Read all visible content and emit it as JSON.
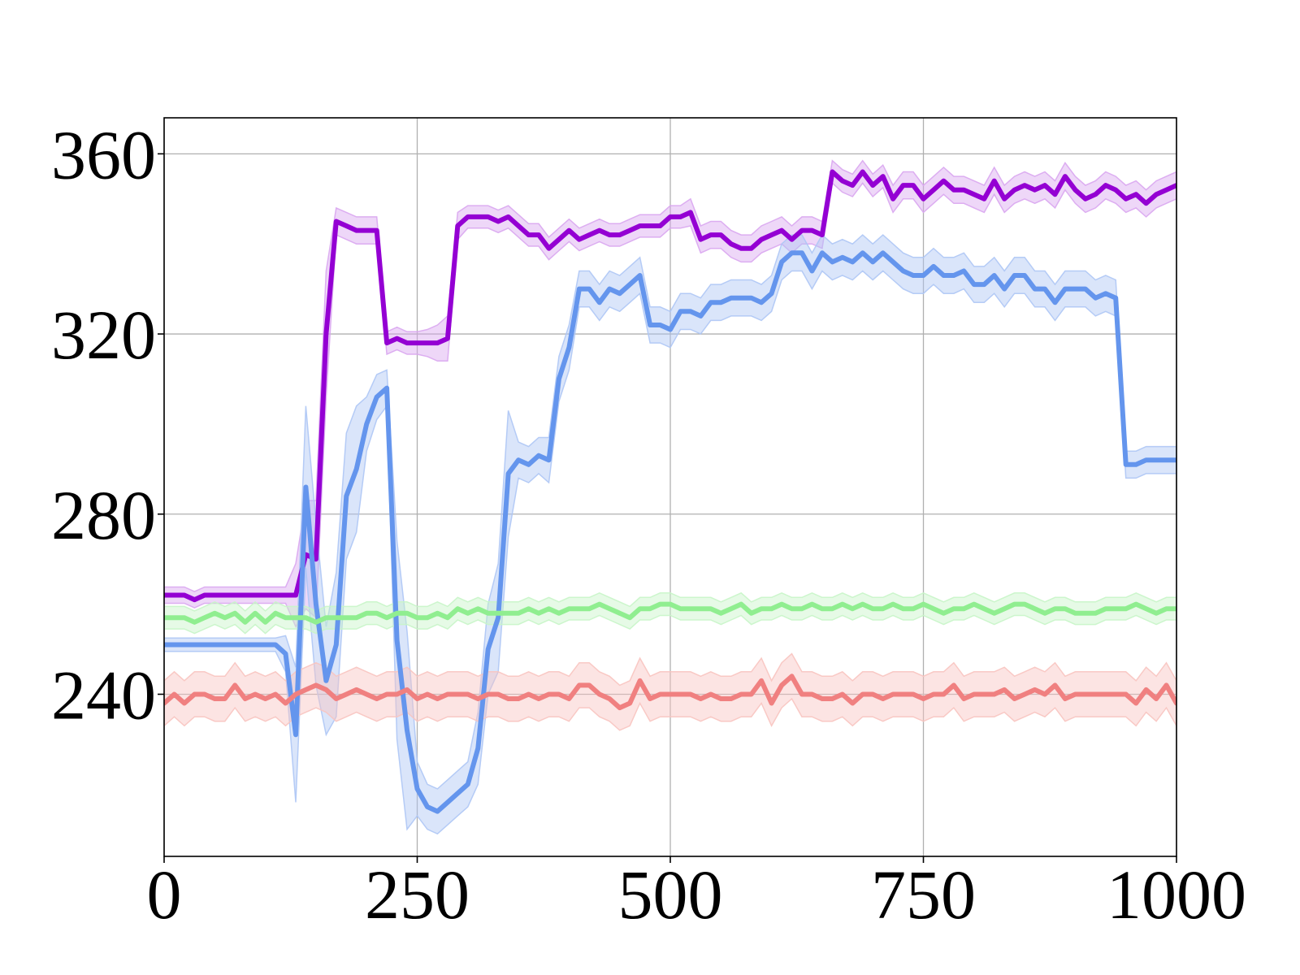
{
  "chart_data": {
    "type": "line",
    "title": "",
    "xlabel": "",
    "ylabel": "",
    "xlim": [
      0,
      1000
    ],
    "ylim": [
      204,
      368
    ],
    "x_ticks": [
      0,
      250,
      500,
      750,
      1000
    ],
    "x_tick_labels": [
      "0",
      "250",
      "500",
      "750",
      "1000"
    ],
    "y_ticks": [
      240,
      280,
      320,
      360
    ],
    "y_tick_labels": [
      "240",
      "280",
      "320",
      "360"
    ],
    "grid": true,
    "legend": "none",
    "x": [
      0,
      10,
      20,
      30,
      40,
      50,
      60,
      70,
      80,
      90,
      100,
      110,
      120,
      130,
      140,
      150,
      160,
      170,
      180,
      190,
      200,
      210,
      220,
      230,
      240,
      250,
      260,
      270,
      280,
      290,
      300,
      310,
      320,
      330,
      340,
      350,
      360,
      370,
      380,
      390,
      400,
      410,
      420,
      430,
      440,
      450,
      460,
      470,
      480,
      490,
      500,
      510,
      520,
      530,
      540,
      550,
      560,
      570,
      580,
      590,
      600,
      610,
      620,
      630,
      640,
      650,
      660,
      670,
      680,
      690,
      700,
      710,
      720,
      730,
      740,
      750,
      760,
      770,
      780,
      790,
      800,
      810,
      820,
      830,
      840,
      850,
      860,
      870,
      880,
      890,
      900,
      910,
      920,
      930,
      940,
      950,
      960,
      970,
      980,
      990,
      1000
    ],
    "series": [
      {
        "color": "#9400d3",
        "band_color": "#d9a6f0",
        "values": [
          262,
          262,
          262,
          261,
          262,
          262,
          262,
          262,
          262,
          262,
          262,
          262,
          262,
          262,
          271,
          270,
          320,
          345,
          344,
          343,
          343,
          343,
          318,
          319,
          318,
          318,
          318,
          318,
          319,
          344,
          346,
          346,
          346,
          345,
          346,
          344,
          342,
          342,
          339,
          341,
          343,
          341,
          342,
          343,
          342,
          342,
          343,
          344,
          344,
          344,
          346,
          346,
          347,
          341,
          342,
          342,
          340,
          339,
          339,
          341,
          342,
          343,
          341,
          343,
          343,
          342,
          356,
          354,
          353,
          356,
          353,
          355,
          350,
          353,
          353,
          350,
          352,
          354,
          352,
          352,
          351,
          350,
          354,
          350,
          352,
          353,
          352,
          353,
          351,
          355,
          352,
          350,
          351,
          353,
          352,
          350,
          351,
          349,
          351,
          352,
          353
        ],
        "spread": [
          1.8,
          1.8,
          1.8,
          1.8,
          1.8,
          1.8,
          1.8,
          1.8,
          1.8,
          1.8,
          1.8,
          1.8,
          1.8,
          7,
          12,
          13,
          14,
          3,
          3,
          3,
          3,
          3,
          2.5,
          2.5,
          2.5,
          2.5,
          3,
          4,
          5,
          3,
          2.5,
          2.5,
          2.5,
          2.5,
          2.5,
          2.5,
          2.5,
          2.5,
          2.5,
          2.5,
          2.5,
          2.5,
          2.5,
          2.5,
          2.5,
          2.5,
          2.5,
          2.5,
          2.5,
          2.5,
          2.5,
          2.5,
          3,
          3,
          3,
          3,
          3,
          3,
          3,
          3,
          3,
          3,
          3,
          3,
          3,
          3,
          2.5,
          2.5,
          2.5,
          2.5,
          2.5,
          2.5,
          3,
          3,
          3,
          3,
          3,
          3,
          3,
          3,
          3,
          3,
          3,
          3,
          3,
          3,
          3,
          3,
          3,
          3,
          3,
          3,
          3,
          3,
          3,
          3,
          3,
          3,
          3,
          3,
          3
        ]
      },
      {
        "color": "#6495ed",
        "band_color": "#aec6f5",
        "values": [
          251,
          251,
          251,
          251,
          251,
          251,
          251,
          251,
          251,
          251,
          251,
          251,
          249,
          231,
          286,
          260,
          243,
          251,
          284,
          290,
          300,
          306,
          308,
          252,
          232,
          219,
          215,
          214,
          216,
          218,
          220,
          228,
          250,
          257,
          289,
          292,
          291,
          293,
          292,
          310,
          317,
          330,
          330,
          327,
          330,
          329,
          331,
          333,
          322,
          322,
          321,
          325,
          325,
          324,
          327,
          327,
          328,
          328,
          328,
          327,
          329,
          336,
          338,
          338,
          334,
          338,
          336,
          337,
          336,
          338,
          336,
          338,
          336,
          334,
          333,
          333,
          335,
          333,
          333,
          334,
          331,
          331,
          333,
          330,
          333,
          333,
          330,
          330,
          327,
          330,
          330,
          330,
          328,
          329,
          328,
          291,
          291,
          292,
          292,
          292,
          292
        ],
        "spread": [
          1.5,
          1.5,
          1.5,
          1.5,
          1.5,
          1.5,
          1.5,
          1.5,
          1.5,
          1.5,
          1.5,
          1.5,
          4,
          15,
          18,
          18,
          12,
          16,
          14,
          14,
          6,
          5,
          4,
          22,
          22,
          6,
          5,
          5,
          5,
          5,
          5,
          8,
          10,
          12,
          14,
          4,
          4,
          4,
          5,
          5,
          5,
          4,
          4,
          4,
          4,
          4,
          4,
          4,
          4,
          4,
          4,
          4,
          4,
          4,
          4,
          4,
          4,
          4,
          4,
          4,
          4,
          4,
          4,
          4,
          4,
          4,
          4,
          4,
          4,
          4,
          4,
          4,
          4,
          4,
          4,
          4,
          4,
          4,
          4,
          4,
          4,
          4,
          4,
          4,
          4,
          4,
          4,
          4,
          4,
          4,
          4,
          4,
          4,
          4,
          4,
          3,
          3,
          3,
          3,
          3,
          3
        ]
      },
      {
        "color": "#90ee90",
        "band_color": "#c8f5c8",
        "values": [
          257,
          257,
          257,
          256,
          257,
          258,
          257,
          258,
          256,
          258,
          256,
          258,
          257,
          257,
          257,
          256,
          257,
          257,
          257,
          257,
          258,
          258,
          257,
          258,
          258,
          257,
          257,
          258,
          257,
          259,
          258,
          259,
          258,
          258,
          258,
          258,
          259,
          258,
          259,
          258,
          259,
          259,
          259,
          260,
          259,
          258,
          257,
          259,
          259,
          260,
          260,
          259,
          259,
          259,
          259,
          258,
          259,
          260,
          258,
          259,
          259,
          260,
          259,
          259,
          260,
          259,
          259,
          260,
          259,
          260,
          259,
          259,
          260,
          259,
          259,
          260,
          259,
          258,
          259,
          259,
          260,
          259,
          258,
          259,
          260,
          260,
          259,
          258,
          259,
          259,
          258,
          258,
          258,
          259,
          259,
          259,
          260,
          259,
          258,
          259,
          259
        ],
        "spread": [
          2.5,
          2.5,
          2.5,
          2.5,
          2.5,
          2.5,
          2.5,
          2.5,
          2.5,
          2.5,
          2.5,
          2.5,
          2.5,
          2.5,
          2.5,
          2.5,
          2.5,
          2.5,
          2.5,
          2.5,
          2.5,
          2.5,
          2.5,
          2.5,
          2.5,
          2.5,
          2.5,
          2.5,
          2.5,
          2.5,
          2.5,
          2.5,
          2.5,
          2.5,
          2.5,
          2.5,
          2.5,
          2.5,
          2.5,
          2.5,
          2.5,
          2.5,
          2.5,
          2.5,
          2.5,
          2.5,
          2.5,
          2.5,
          2.5,
          2.5,
          2.5,
          2.5,
          2.5,
          2.5,
          2.5,
          2.5,
          2.5,
          2.5,
          2.5,
          2.5,
          2.5,
          2.5,
          2.5,
          2.5,
          2.5,
          2.5,
          2.5,
          2.5,
          2.5,
          2.5,
          2.5,
          2.5,
          2.5,
          2.5,
          2.5,
          2.5,
          2.5,
          2.5,
          2.5,
          2.5,
          2.5,
          2.5,
          2.5,
          2.5,
          2.5,
          2.5,
          2.5,
          2.5,
          2.5,
          2.5,
          2.5,
          2.5,
          2.5,
          2.5,
          2.5,
          2.5,
          2.5,
          2.5,
          2.5,
          2.5,
          2.5
        ]
      },
      {
        "color": "#f08080",
        "band_color": "#f8c4c0",
        "values": [
          238,
          240,
          238,
          240,
          240,
          239,
          239,
          242,
          239,
          240,
          239,
          240,
          238,
          240,
          241,
          242,
          241,
          239,
          240,
          241,
          240,
          239,
          240,
          240,
          241,
          239,
          240,
          239,
          240,
          240,
          240,
          239,
          240,
          240,
          239,
          239,
          240,
          239,
          240,
          240,
          239,
          242,
          242,
          240,
          239,
          237,
          238,
          243,
          239,
          240,
          240,
          240,
          240,
          239,
          240,
          239,
          239,
          240,
          240,
          243,
          238,
          242,
          244,
          240,
          240,
          239,
          239,
          240,
          238,
          240,
          240,
          239,
          240,
          240,
          240,
          239,
          240,
          240,
          242,
          239,
          240,
          240,
          240,
          241,
          239,
          240,
          241,
          240,
          242,
          239,
          240,
          240,
          240,
          240,
          240,
          240,
          238,
          241,
          239,
          242,
          238
        ],
        "spread": [
          5,
          5,
          5,
          5,
          5,
          5,
          5,
          5,
          5,
          5,
          5,
          5,
          5,
          5,
          5,
          5,
          5,
          5,
          5,
          5,
          5,
          5,
          5,
          5,
          5,
          5,
          5,
          5,
          5,
          5,
          5,
          5,
          5,
          5,
          5,
          5,
          5,
          5,
          5,
          5,
          5,
          5,
          5,
          5,
          5,
          5,
          5,
          5,
          5,
          5,
          5,
          5,
          5,
          5,
          5,
          5,
          5,
          5,
          5,
          5,
          5,
          5,
          5,
          5,
          5,
          5,
          5,
          5,
          5,
          5,
          5,
          5,
          5,
          5,
          5,
          5,
          5,
          5,
          5,
          5,
          5,
          5,
          5,
          5,
          5,
          5,
          5,
          5,
          5,
          5,
          5,
          5,
          5,
          5,
          5,
          5,
          5,
          5,
          5,
          5,
          5
        ]
      }
    ]
  }
}
